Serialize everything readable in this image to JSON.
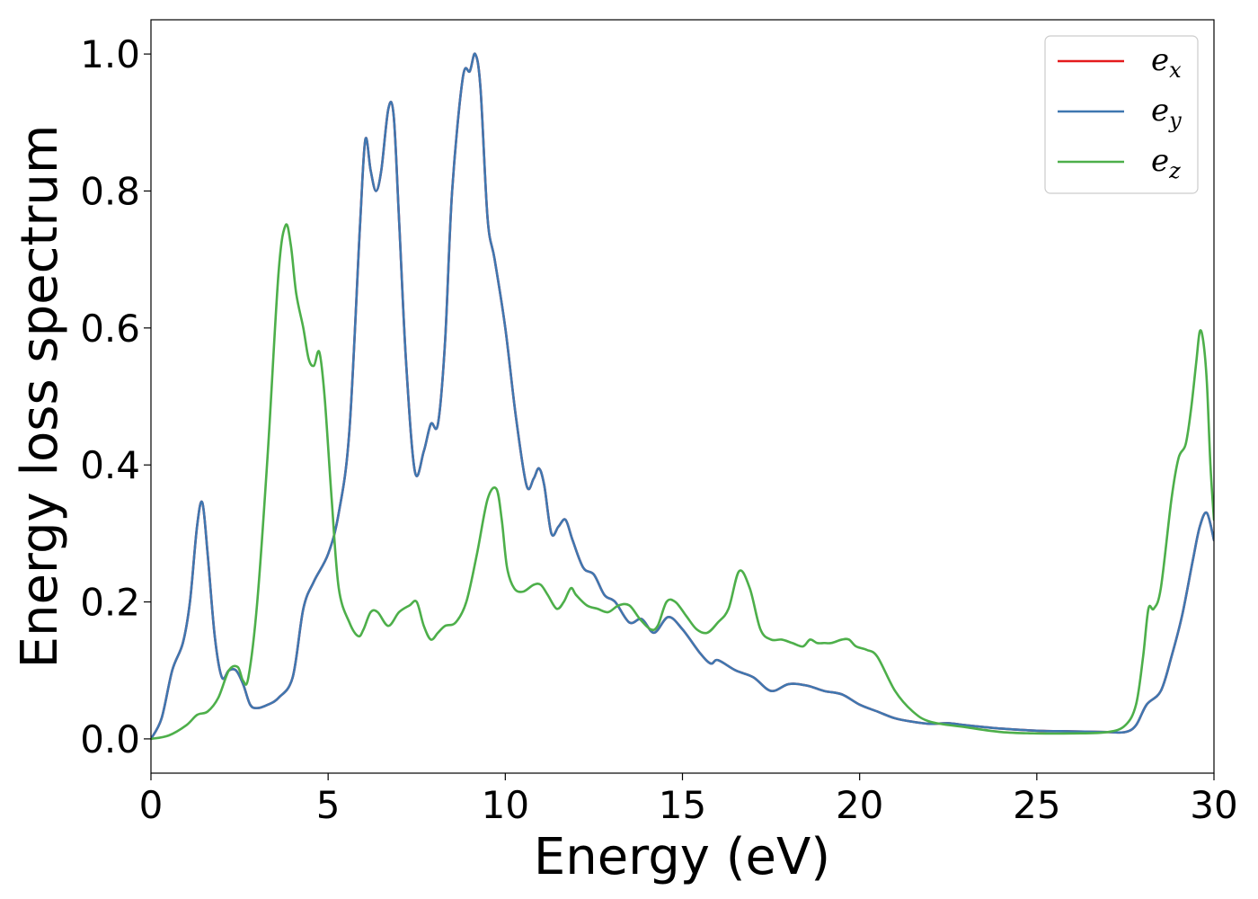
{
  "chart_data": {
    "type": "line",
    "xlabel": "Energy (eV)",
    "ylabel": "Energy loss spectrum",
    "xlim": [
      0,
      30
    ],
    "ylim": [
      -0.05,
      1.05
    ],
    "xticks": [
      0,
      5,
      10,
      15,
      20,
      25,
      30
    ],
    "xtick_labels": [
      "0",
      "5",
      "10",
      "15",
      "20",
      "25",
      "30"
    ],
    "yticks": [
      0.0,
      0.2,
      0.4,
      0.6,
      0.8,
      1.0
    ],
    "ytick_labels": [
      "0.0",
      "0.2",
      "0.4",
      "0.6",
      "0.8",
      "1.0"
    ],
    "grid": false,
    "legend_position": "top-right",
    "series": [
      {
        "name": "e_x",
        "label_base": "e",
        "label_sub": "x",
        "color": "#e41a1c",
        "x": [
          0,
          0.3,
          0.6,
          0.9,
          1.1,
          1.3,
          1.45,
          1.6,
          1.8,
          2.0,
          2.2,
          2.4,
          2.6,
          2.8,
          3.0,
          3.3,
          3.6,
          4.0,
          4.3,
          4.6,
          5.0,
          5.3,
          5.6,
          5.9,
          6.05,
          6.2,
          6.35,
          6.5,
          6.7,
          6.85,
          7.0,
          7.2,
          7.45,
          7.7,
          7.9,
          8.1,
          8.3,
          8.5,
          8.8,
          9.0,
          9.15,
          9.3,
          9.5,
          9.7,
          10.0,
          10.3,
          10.6,
          10.8,
          10.95,
          11.1,
          11.3,
          11.5,
          11.7,
          11.9,
          12.2,
          12.5,
          12.8,
          13.1,
          13.5,
          13.85,
          14.2,
          14.6,
          15.0,
          15.5,
          15.8,
          16.0,
          16.5,
          17.0,
          17.5,
          18.0,
          18.5,
          19.0,
          19.5,
          20.0,
          20.5,
          21.0,
          21.5,
          22.0,
          22.5,
          23.0,
          24.0,
          25.0,
          26.0,
          27.0,
          27.5,
          27.8,
          28.1,
          28.5,
          28.8,
          29.1,
          29.4,
          29.6,
          29.8,
          30.0
        ],
        "y": [
          0.0,
          0.03,
          0.1,
          0.14,
          0.2,
          0.31,
          0.345,
          0.27,
          0.15,
          0.09,
          0.1,
          0.1,
          0.08,
          0.05,
          0.045,
          0.05,
          0.06,
          0.09,
          0.19,
          0.23,
          0.27,
          0.33,
          0.45,
          0.75,
          0.875,
          0.83,
          0.8,
          0.83,
          0.92,
          0.91,
          0.76,
          0.55,
          0.39,
          0.42,
          0.46,
          0.46,
          0.58,
          0.8,
          0.965,
          0.975,
          1.0,
          0.95,
          0.76,
          0.7,
          0.6,
          0.47,
          0.37,
          0.38,
          0.395,
          0.37,
          0.3,
          0.31,
          0.32,
          0.29,
          0.25,
          0.24,
          0.21,
          0.2,
          0.17,
          0.175,
          0.155,
          0.178,
          0.16,
          0.125,
          0.11,
          0.115,
          0.1,
          0.09,
          0.07,
          0.08,
          0.078,
          0.07,
          0.065,
          0.05,
          0.04,
          0.03,
          0.025,
          0.022,
          0.023,
          0.02,
          0.015,
          0.012,
          0.011,
          0.01,
          0.01,
          0.02,
          0.05,
          0.07,
          0.12,
          0.18,
          0.26,
          0.31,
          0.33,
          0.29
        ]
      },
      {
        "name": "e_y",
        "label_base": "e",
        "label_sub": "y",
        "color": "#3f77b0",
        "x": [
          0,
          0.3,
          0.6,
          0.9,
          1.1,
          1.3,
          1.45,
          1.6,
          1.8,
          2.0,
          2.2,
          2.4,
          2.6,
          2.8,
          3.0,
          3.3,
          3.6,
          4.0,
          4.3,
          4.6,
          5.0,
          5.3,
          5.6,
          5.9,
          6.05,
          6.2,
          6.35,
          6.5,
          6.7,
          6.85,
          7.0,
          7.2,
          7.45,
          7.7,
          7.9,
          8.1,
          8.3,
          8.5,
          8.8,
          9.0,
          9.15,
          9.3,
          9.5,
          9.7,
          10.0,
          10.3,
          10.6,
          10.8,
          10.95,
          11.1,
          11.3,
          11.5,
          11.7,
          11.9,
          12.2,
          12.5,
          12.8,
          13.1,
          13.5,
          13.85,
          14.2,
          14.6,
          15.0,
          15.5,
          15.8,
          16.0,
          16.5,
          17.0,
          17.5,
          18.0,
          18.5,
          19.0,
          19.5,
          20.0,
          20.5,
          21.0,
          21.5,
          22.0,
          22.5,
          23.0,
          24.0,
          25.0,
          26.0,
          27.0,
          27.5,
          27.8,
          28.1,
          28.5,
          28.8,
          29.1,
          29.4,
          29.6,
          29.8,
          30.0
        ],
        "y": [
          0.0,
          0.03,
          0.1,
          0.14,
          0.2,
          0.31,
          0.345,
          0.27,
          0.15,
          0.09,
          0.1,
          0.1,
          0.08,
          0.05,
          0.045,
          0.05,
          0.06,
          0.09,
          0.19,
          0.23,
          0.27,
          0.33,
          0.45,
          0.75,
          0.875,
          0.83,
          0.8,
          0.83,
          0.92,
          0.91,
          0.76,
          0.55,
          0.39,
          0.42,
          0.46,
          0.46,
          0.58,
          0.8,
          0.965,
          0.975,
          1.0,
          0.95,
          0.76,
          0.7,
          0.6,
          0.47,
          0.37,
          0.38,
          0.395,
          0.37,
          0.3,
          0.31,
          0.32,
          0.29,
          0.25,
          0.24,
          0.21,
          0.2,
          0.17,
          0.175,
          0.155,
          0.178,
          0.16,
          0.125,
          0.11,
          0.115,
          0.1,
          0.09,
          0.07,
          0.08,
          0.078,
          0.07,
          0.065,
          0.05,
          0.04,
          0.03,
          0.025,
          0.022,
          0.023,
          0.02,
          0.015,
          0.012,
          0.011,
          0.01,
          0.01,
          0.02,
          0.05,
          0.07,
          0.12,
          0.18,
          0.26,
          0.31,
          0.33,
          0.29
        ]
      },
      {
        "name": "e_z",
        "label_base": "e",
        "label_sub": "z",
        "color": "#4daf4a",
        "x": [
          0,
          0.5,
          1.0,
          1.3,
          1.6,
          1.9,
          2.2,
          2.45,
          2.6,
          2.75,
          3.0,
          3.3,
          3.6,
          3.8,
          3.95,
          4.1,
          4.3,
          4.45,
          4.6,
          4.75,
          4.9,
          5.1,
          5.3,
          5.6,
          5.85,
          6.0,
          6.2,
          6.4,
          6.7,
          7.0,
          7.3,
          7.5,
          7.7,
          7.9,
          8.1,
          8.3,
          8.6,
          8.9,
          9.2,
          9.5,
          9.75,
          9.9,
          10.05,
          10.25,
          10.5,
          10.8,
          11.0,
          11.2,
          11.45,
          11.65,
          11.85,
          12.0,
          12.3,
          12.6,
          12.9,
          13.2,
          13.5,
          13.8,
          14.1,
          14.3,
          14.55,
          14.8,
          15.1,
          15.4,
          15.7,
          16.0,
          16.3,
          16.6,
          16.9,
          17.2,
          17.5,
          17.8,
          18.1,
          18.4,
          18.6,
          18.8,
          19.0,
          19.2,
          19.5,
          19.7,
          19.9,
          20.2,
          20.5,
          21.0,
          21.5,
          22.0,
          23.0,
          24.0,
          25.0,
          26.0,
          27.0,
          27.5,
          27.8,
          28.0,
          28.15,
          28.3,
          28.5,
          28.8,
          29.0,
          29.2,
          29.35,
          29.5,
          29.6,
          29.7,
          29.8,
          29.9,
          30.0
        ],
        "y": [
          0.0,
          0.005,
          0.02,
          0.035,
          0.04,
          0.06,
          0.1,
          0.105,
          0.085,
          0.09,
          0.2,
          0.42,
          0.68,
          0.75,
          0.72,
          0.65,
          0.6,
          0.555,
          0.545,
          0.565,
          0.5,
          0.35,
          0.22,
          0.17,
          0.15,
          0.16,
          0.185,
          0.185,
          0.165,
          0.185,
          0.195,
          0.2,
          0.165,
          0.145,
          0.155,
          0.165,
          0.17,
          0.2,
          0.27,
          0.35,
          0.365,
          0.32,
          0.25,
          0.22,
          0.215,
          0.225,
          0.225,
          0.21,
          0.19,
          0.2,
          0.22,
          0.21,
          0.195,
          0.19,
          0.185,
          0.195,
          0.195,
          0.175,
          0.16,
          0.165,
          0.2,
          0.2,
          0.18,
          0.16,
          0.155,
          0.17,
          0.19,
          0.245,
          0.22,
          0.16,
          0.145,
          0.145,
          0.14,
          0.135,
          0.145,
          0.14,
          0.14,
          0.14,
          0.145,
          0.145,
          0.135,
          0.13,
          0.12,
          0.07,
          0.04,
          0.025,
          0.017,
          0.01,
          0.008,
          0.008,
          0.01,
          0.02,
          0.05,
          0.12,
          0.19,
          0.19,
          0.22,
          0.35,
          0.41,
          0.43,
          0.48,
          0.55,
          0.595,
          0.58,
          0.52,
          0.4,
          0.32
        ]
      }
    ]
  }
}
